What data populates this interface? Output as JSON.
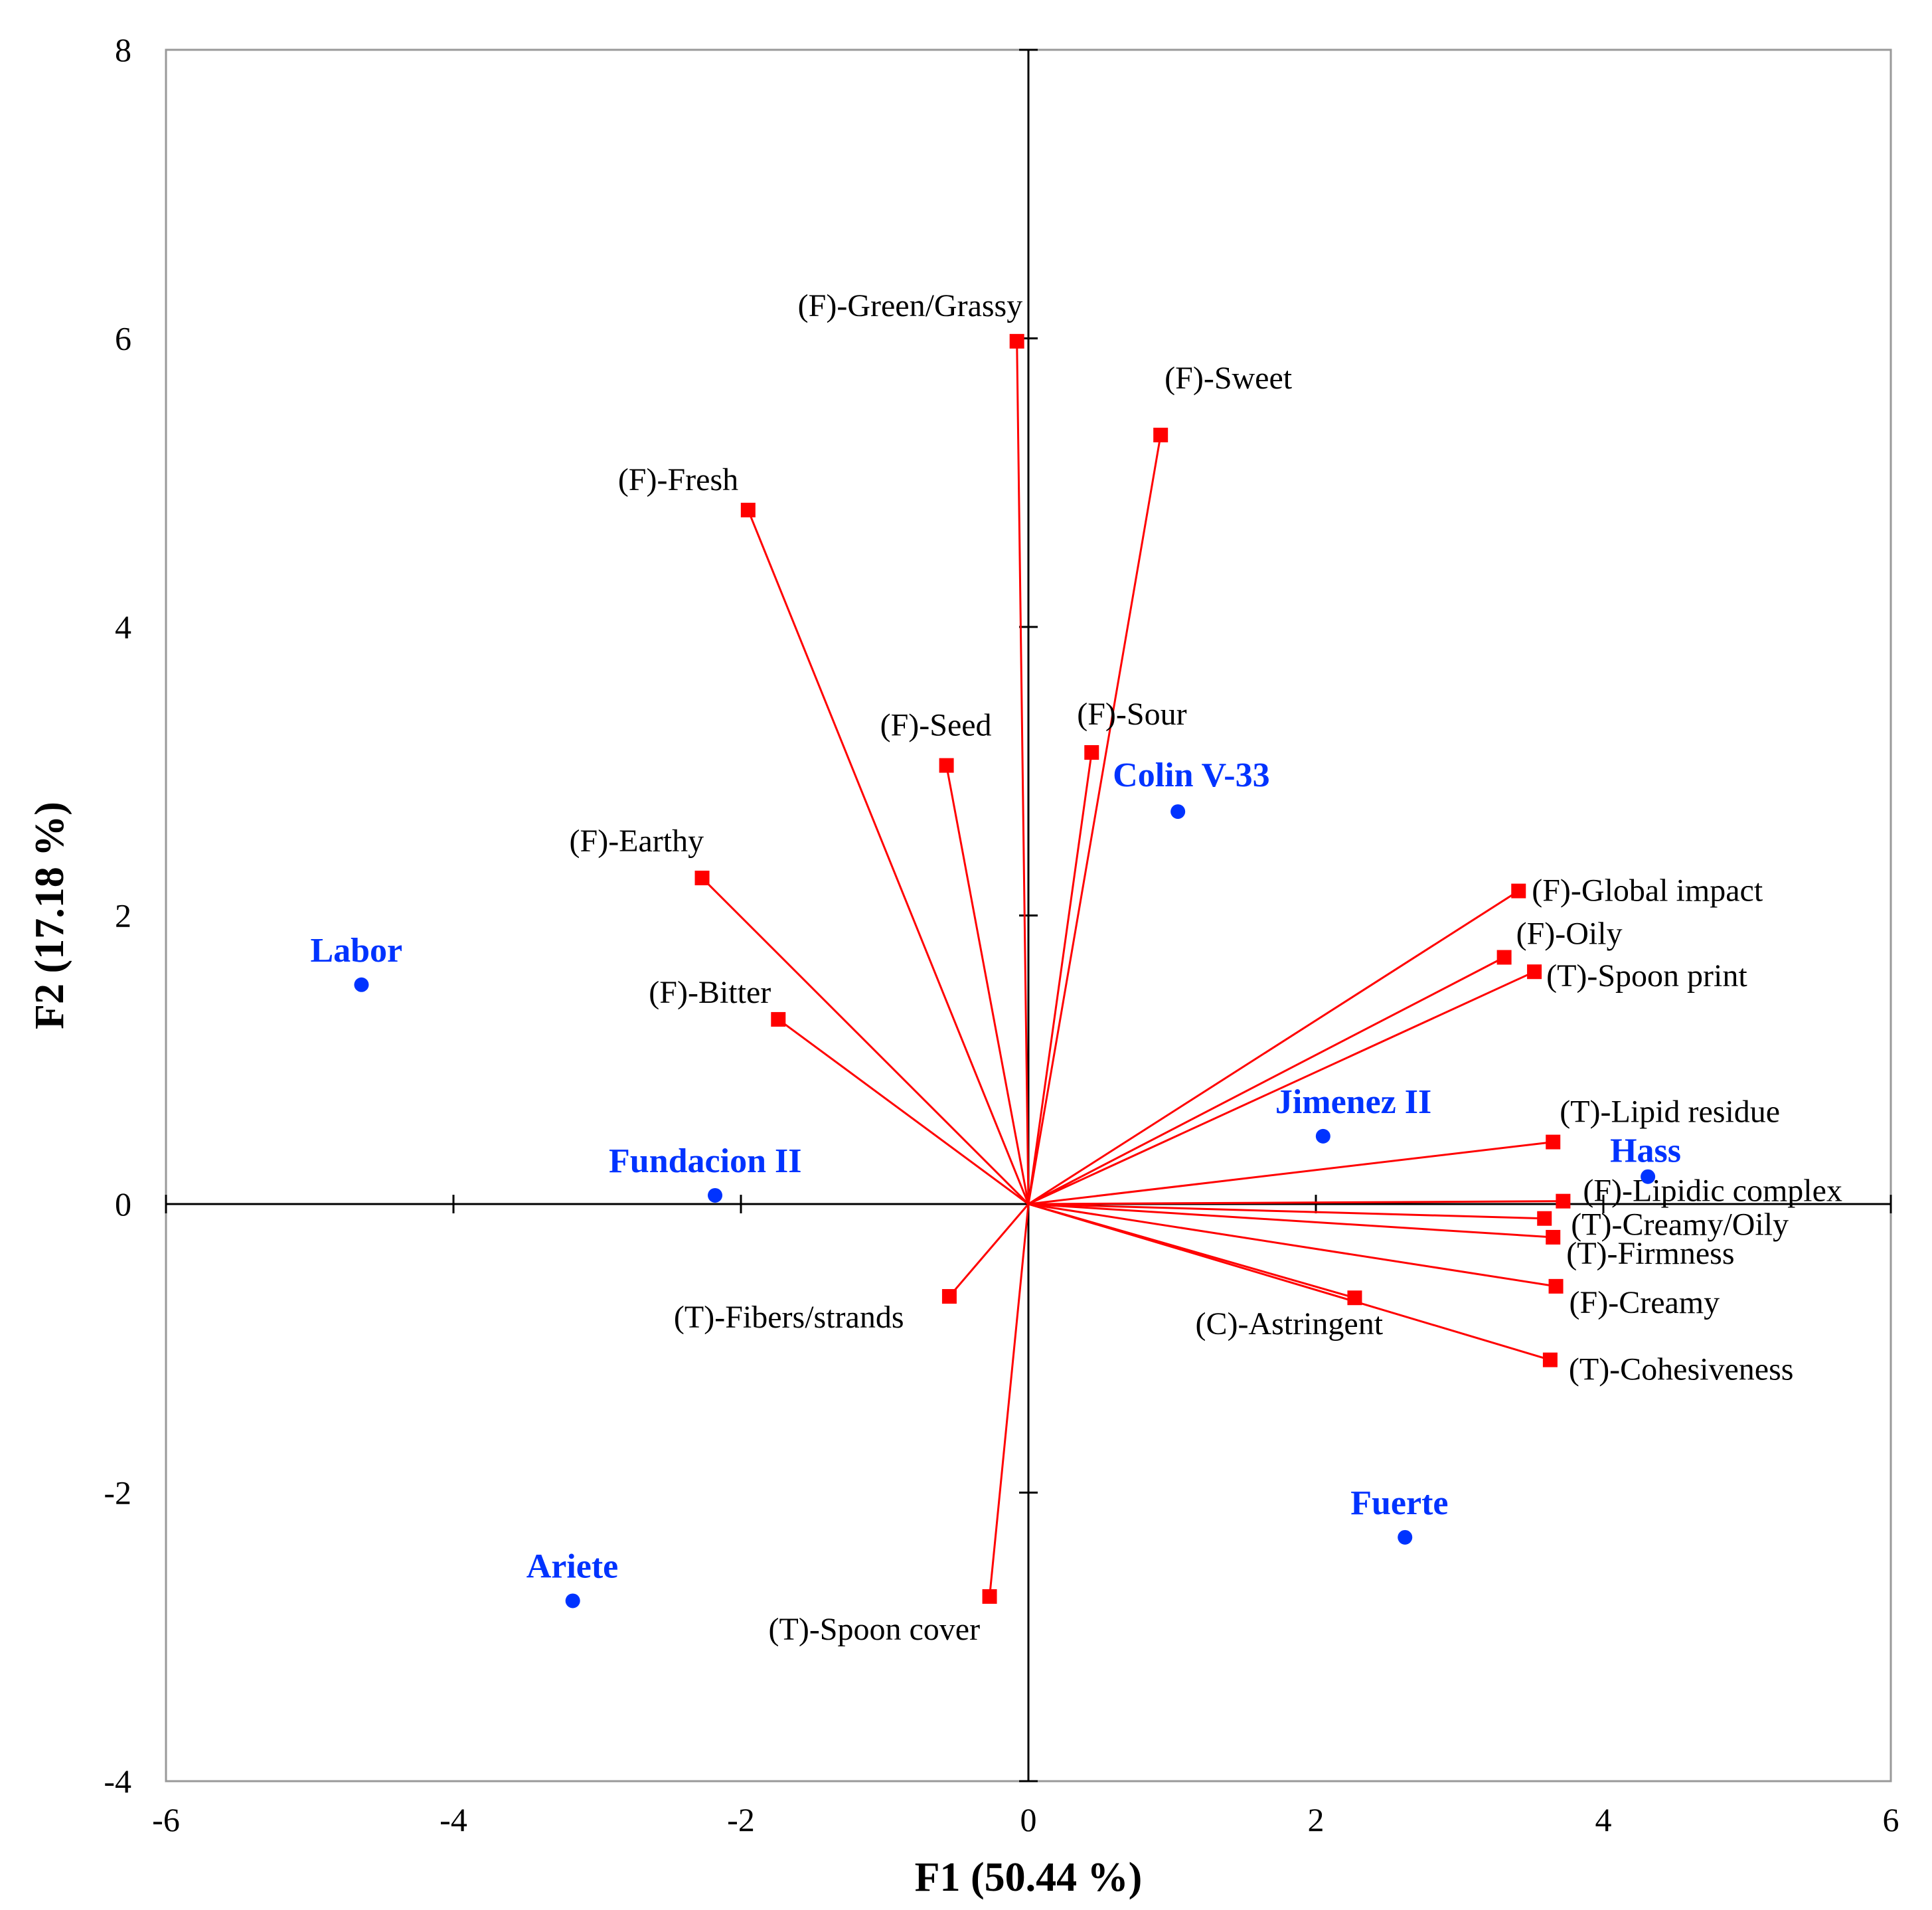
{
  "colors": {
    "variables": "#ff0000",
    "observations": "#0033ff",
    "axis": "#000000"
  },
  "chart_data": {
    "type": "scatter",
    "subtype": "biplot",
    "xlabel": "F1 (50.44 %)",
    "ylabel": "F2 (17.18 %)",
    "xlim": [
      -6,
      6
    ],
    "ylim": [
      -4,
      8
    ],
    "xticks": [
      "-6",
      "-4",
      "-2",
      "0",
      "2",
      "4",
      "6"
    ],
    "yticks": [
      "-4",
      "-2",
      "0",
      "2",
      "4",
      "6",
      "8"
    ],
    "variables": [
      {
        "name": "(F)-Green/Grassy",
        "x": -0.08,
        "y": 5.98
      },
      {
        "name": "(F)-Sweet",
        "x": 0.92,
        "y": 5.33
      },
      {
        "name": "(F)-Fresh",
        "x": -1.95,
        "y": 4.81
      },
      {
        "name": "(F)-Seed",
        "x": -0.57,
        "y": 3.04
      },
      {
        "name": "(F)-Sour",
        "x": 0.44,
        "y": 3.13
      },
      {
        "name": "(F)-Earthy",
        "x": -2.27,
        "y": 2.26
      },
      {
        "name": "(F)-Bitter",
        "x": -1.74,
        "y": 1.28
      },
      {
        "name": "(F)-Global impact",
        "x": 3.41,
        "y": 2.17
      },
      {
        "name": "(F)-Oily",
        "x": 3.31,
        "y": 1.71
      },
      {
        "name": "(T)-Spoon print",
        "x": 3.52,
        "y": 1.61
      },
      {
        "name": "(T)-Lipid residue",
        "x": 3.65,
        "y": 0.43
      },
      {
        "name": "(F)-Lipidic complex",
        "x": 3.72,
        "y": 0.02
      },
      {
        "name": "(T)-Creamy/Oily",
        "x": 3.59,
        "y": -0.1
      },
      {
        "name": "(T)-Firmness",
        "x": 3.65,
        "y": -0.23
      },
      {
        "name": "(F)-Creamy",
        "x": 3.67,
        "y": -0.57
      },
      {
        "name": "(T)-Cohesiveness",
        "x": 3.63,
        "y": -1.08
      },
      {
        "name": "(C)-Astringent",
        "x": 2.27,
        "y": -0.65
      },
      {
        "name": "(T)-Fibers/strands",
        "x": -0.55,
        "y": -0.64
      },
      {
        "name": "(T)-Spoon cover",
        "x": -0.27,
        "y": -2.72
      }
    ],
    "observations": [
      {
        "name": "Labor",
        "x": -4.64,
        "y": 1.52
      },
      {
        "name": "Fundacion II",
        "x": -2.18,
        "y": 0.06
      },
      {
        "name": "Ariete",
        "x": -3.17,
        "y": -2.75
      },
      {
        "name": "Colin V-33",
        "x": 1.04,
        "y": 2.72
      },
      {
        "name": "Jimenez II",
        "x": 2.05,
        "y": 0.47
      },
      {
        "name": "Hass",
        "x": 4.31,
        "y": 0.19
      },
      {
        "name": "Fuerte",
        "x": 2.62,
        "y": -2.31
      }
    ]
  }
}
